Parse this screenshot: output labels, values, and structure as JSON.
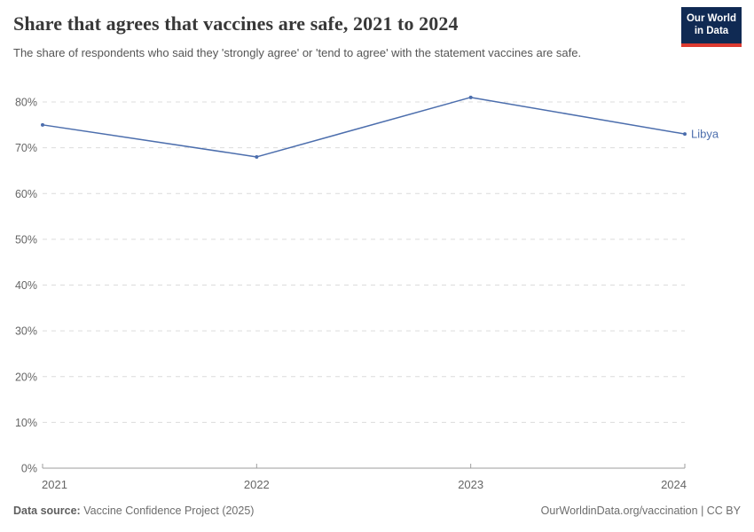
{
  "header": {
    "title": "Share that agrees that vaccines are safe, 2021 to 2024",
    "subtitle": "The share of respondents who said they 'strongly agree' or 'tend to agree' with the statement vaccines are safe.",
    "logo": {
      "line1": "Our World",
      "line2": "in Data"
    }
  },
  "chart_data": {
    "type": "line",
    "title": "Share that agrees that vaccines are safe, 2021 to 2024",
    "xlabel": "",
    "ylabel": "",
    "x": [
      2021,
      2022,
      2023,
      2024
    ],
    "x_tick_labels": [
      "2021",
      "2022",
      "2023",
      "2024"
    ],
    "series": [
      {
        "name": "Libya",
        "values": [
          75,
          68,
          81,
          73
        ],
        "color": "#4C6EAD"
      }
    ],
    "ylim": [
      0,
      80
    ],
    "ytick_interval": 10,
    "y_tick_labels": [
      "0%",
      "10%",
      "20%",
      "30%",
      "40%",
      "50%",
      "60%",
      "70%",
      "80%"
    ],
    "grid": "horizontal-dashed",
    "legend_position": "end-of-line-label"
  },
  "footer": {
    "source_label": "Data source:",
    "source_value": "Vaccine Confidence Project (2025)",
    "credit": "OurWorldinData.org/vaccination | CC BY"
  },
  "colors": {
    "line": "#4C6EAD",
    "grid": "#dcdcdc",
    "axis": "#9e9e9e",
    "tick_text": "#666666",
    "title_text": "#383838",
    "subtitle_text": "#555555",
    "footer_text": "#6d6d6d",
    "logo_bg": "#102a53",
    "logo_accent": "#dc3a30"
  }
}
